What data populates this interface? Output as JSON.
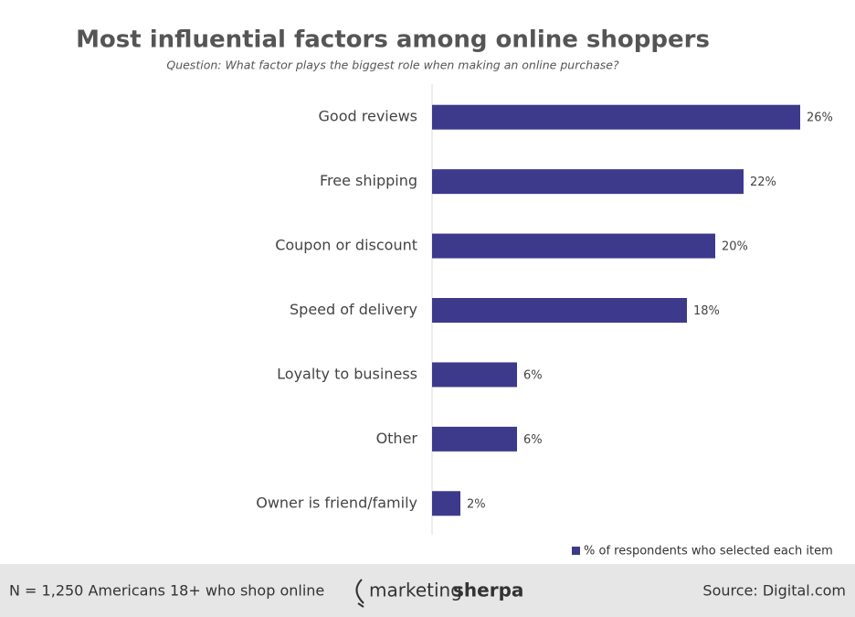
{
  "chart_data": {
    "type": "bar",
    "orientation": "horizontal",
    "title": "Most influential factors among online shoppers",
    "subtitle": "Question: What factor plays the biggest role when making an online purchase?",
    "categories": [
      "Good reviews",
      "Free shipping",
      "Coupon or discount",
      "Speed of delivery",
      "Loyalty to business",
      "Other",
      "Owner is friend/family"
    ],
    "series": [
      {
        "name": "% of respondents who selected each item",
        "color": "#3d3a8c",
        "values": [
          26,
          22,
          20,
          18,
          6,
          6,
          2
        ],
        "value_labels": [
          "26%",
          "22%",
          "20%",
          "18%",
          "6%",
          "6%",
          "2%"
        ]
      }
    ],
    "legend": "bottom-right"
  },
  "footer": {
    "note": "N = 1,250 Americans 18+ who shop online",
    "logo": [
      "marketing",
      "sherpa"
    ],
    "source": "Source: Digital.com"
  }
}
